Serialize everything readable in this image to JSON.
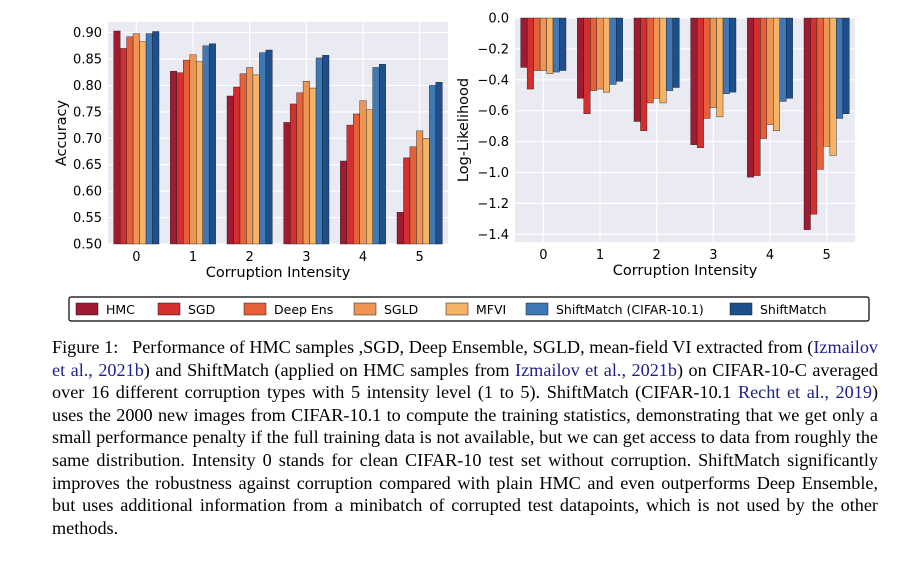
{
  "figure": {
    "legend": [
      "HMC",
      "SGD",
      "Deep Ens",
      "SGLD",
      "MFVI",
      "ShiftMatch (CIFAR-10.1)",
      "ShiftMatch"
    ],
    "colors": [
      "#9e1b32",
      "#d42e2e",
      "#e4603a",
      "#ef9553",
      "#f4b366",
      "#3f78b4",
      "#1d4f8c"
    ]
  },
  "chart_data": [
    {
      "type": "bar",
      "xlabel": "Corruption Intensity",
      "ylabel": "Accuracy",
      "categories": [
        "0",
        "1",
        "2",
        "3",
        "4",
        "5"
      ],
      "ylim": [
        0.5,
        0.92
      ],
      "yticks": [
        "0.50",
        "0.55",
        "0.60",
        "0.65",
        "0.70",
        "0.75",
        "0.80",
        "0.85",
        "0.90"
      ],
      "grid": true,
      "series": [
        {
          "name": "HMC",
          "values": [
            0.903,
            0.827,
            0.78,
            0.73,
            0.657,
            0.56
          ]
        },
        {
          "name": "SGD",
          "values": [
            0.87,
            0.824,
            0.797,
            0.765,
            0.725,
            0.663
          ]
        },
        {
          "name": "Deep Ens",
          "values": [
            0.892,
            0.848,
            0.822,
            0.786,
            0.746,
            0.684
          ]
        },
        {
          "name": "SGLD",
          "values": [
            0.898,
            0.858,
            0.834,
            0.808,
            0.771,
            0.714
          ]
        },
        {
          "name": "MFVI",
          "values": [
            0.883,
            0.845,
            0.82,
            0.795,
            0.754,
            0.7
          ]
        },
        {
          "name": "ShiftMatch (CIFAR-10.1)",
          "values": [
            0.898,
            0.875,
            0.862,
            0.852,
            0.834,
            0.8
          ]
        },
        {
          "name": "ShiftMatch",
          "values": [
            0.902,
            0.879,
            0.867,
            0.857,
            0.84,
            0.806
          ]
        }
      ]
    },
    {
      "type": "bar",
      "xlabel": "Corruption Intensity",
      "ylabel": "Log-Likelihood",
      "categories": [
        "0",
        "1",
        "2",
        "3",
        "4",
        "5"
      ],
      "ylim": [
        -1.45,
        0.0
      ],
      "yticks": [
        "0.0",
        "−0.2",
        "−0.4",
        "−0.6",
        "−0.8",
        "−1.0",
        "−1.2",
        "−1.4"
      ],
      "grid": true,
      "series": [
        {
          "name": "HMC",
          "values": [
            -0.32,
            -0.52,
            -0.67,
            -0.82,
            -1.03,
            -1.37
          ]
        },
        {
          "name": "SGD",
          "values": [
            -0.46,
            -0.62,
            -0.73,
            -0.84,
            -1.02,
            -1.27
          ]
        },
        {
          "name": "Deep Ens",
          "values": [
            -0.34,
            -0.47,
            -0.55,
            -0.65,
            -0.78,
            -0.98
          ]
        },
        {
          "name": "SGLD",
          "values": [
            -0.34,
            -0.46,
            -0.52,
            -0.58,
            -0.69,
            -0.83
          ]
        },
        {
          "name": "MFVI",
          "values": [
            -0.36,
            -0.48,
            -0.55,
            -0.64,
            -0.73,
            -0.89
          ]
        },
        {
          "name": "ShiftMatch (CIFAR-10.1)",
          "values": [
            -0.35,
            -0.43,
            -0.47,
            -0.49,
            -0.54,
            -0.65
          ]
        },
        {
          "name": "ShiftMatch",
          "values": [
            -0.34,
            -0.41,
            -0.45,
            -0.48,
            -0.52,
            -0.62
          ]
        }
      ]
    }
  ],
  "caption": {
    "label": "Figure 1:",
    "t1": "Performance of HMC samples ,SGD, Deep Ensemble, SGLD, mean-field VI extracted from (",
    "c1": "Izmailov et al., 2021b",
    "t2": ") and ShiftMatch (applied on HMC samples from ",
    "c2": "Izmailov et al., 2021b",
    "t3": ") on CIFAR-10-C averaged over 16 different corruption types with 5 intensity level (1 to 5). ShiftMatch (CIFAR-10.1 ",
    "c3": "Recht et al., 2019",
    "t4": ") uses the 2000 new images from CIFAR-10.1 to compute the training statistics, demonstrating that we get only a small performance penalty if the full training data is not available, but we can get access to data from roughly the same distribution. Intensity 0 stands for clean CIFAR-10 test set without corruption. ShiftMatch significantly improves the robustness against corruption compared with plain HMC and even outperforms Deep Ensemble, but uses additional information from a minibatch of corrupted test datapoints, which is not used by the other methods."
  }
}
